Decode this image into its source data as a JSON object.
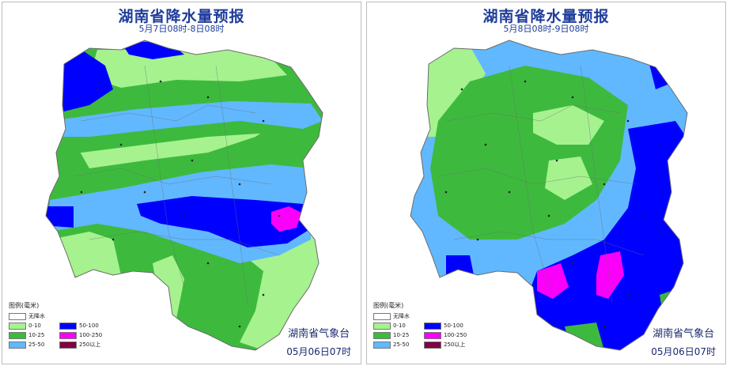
{
  "colors": {
    "no_rain": "#ffffff",
    "r0_10": "#a6f28f",
    "r10_25": "#3dba3d",
    "r25_50": "#61b8ff",
    "r50_100": "#0000ff",
    "r100_250": "#fa00fa",
    "r250_plus": "#800040",
    "title": "#1e3c9a"
  },
  "legend": {
    "title": "图例(毫米)",
    "items": [
      {
        "label": "无降水"
      },
      {
        "label": "0-10"
      },
      {
        "label": "50-100"
      },
      {
        "label": "10-25"
      },
      {
        "label": "100-250"
      },
      {
        "label": "25-50"
      },
      {
        "label": "250以上"
      }
    ]
  },
  "panels": [
    {
      "title": "湖南省降水量预报",
      "subtitle": "5月7日08时-8日08时",
      "issuer": "湖南省气象台",
      "issue_time": "05月06日07时"
    },
    {
      "title": "湖南省降水量预报",
      "subtitle": "5月8日08时-9日08时",
      "issuer": "湖南省气象台",
      "issue_time": "05月06日07时"
    }
  ]
}
